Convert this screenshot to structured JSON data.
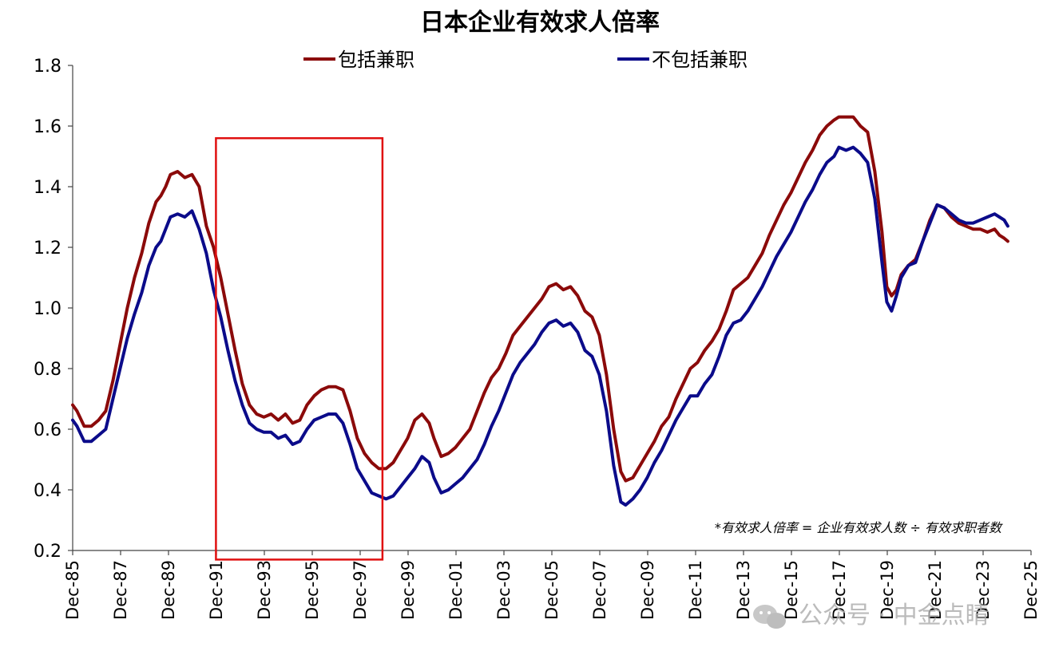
{
  "chart_data": {
    "type": "line",
    "title": "日本企业有效求人倍率",
    "xlabel": "",
    "ylabel": "",
    "ylim": [
      0.2,
      1.8
    ],
    "yticks": [
      "0.2",
      "0.4",
      "0.6",
      "0.8",
      "1.0",
      "1.2",
      "1.4",
      "1.6",
      "1.8"
    ],
    "xlim": [
      1985.92,
      2025.92
    ],
    "xticks": [
      "Dec-85",
      "Dec-87",
      "Dec-89",
      "Dec-91",
      "Dec-93",
      "Dec-95",
      "Dec-97",
      "Dec-99",
      "Dec-01",
      "Dec-03",
      "Dec-05",
      "Dec-07",
      "Dec-09",
      "Dec-11",
      "Dec-13",
      "Dec-15",
      "Dec-17",
      "Dec-19",
      "Dec-21",
      "Dec-23",
      "Dec-25"
    ],
    "legend_position": "top",
    "grid": false,
    "series": [
      {
        "name": "包括兼职",
        "color": "#8b0a0a",
        "x": [
          1985.92,
          1986.1,
          1986.4,
          1986.7,
          1987.0,
          1987.3,
          1987.6,
          1987.9,
          1988.2,
          1988.5,
          1988.8,
          1989.1,
          1989.4,
          1989.6,
          1989.8,
          1990.0,
          1990.3,
          1990.6,
          1990.9,
          1991.2,
          1991.5,
          1991.8,
          1992.1,
          1992.4,
          1992.7,
          1993.0,
          1993.3,
          1993.6,
          1993.9,
          1994.2,
          1994.5,
          1994.8,
          1995.1,
          1995.4,
          1995.7,
          1996.0,
          1996.3,
          1996.6,
          1996.9,
          1997.2,
          1997.5,
          1997.8,
          1998.1,
          1998.4,
          1998.7,
          1999.0,
          1999.3,
          1999.6,
          1999.9,
          2000.2,
          2000.5,
          2000.8,
          2001.0,
          2001.3,
          2001.6,
          2001.9,
          2002.2,
          2002.5,
          2002.8,
          2003.1,
          2003.4,
          2003.7,
          2004.0,
          2004.3,
          2004.6,
          2004.9,
          2005.2,
          2005.5,
          2005.8,
          2006.1,
          2006.4,
          2006.7,
          2007.0,
          2007.3,
          2007.6,
          2007.9,
          2008.2,
          2008.5,
          2008.8,
          2009.0,
          2009.3,
          2009.6,
          2009.9,
          2010.2,
          2010.5,
          2010.8,
          2011.1,
          2011.4,
          2011.7,
          2012.0,
          2012.3,
          2012.6,
          2012.9,
          2013.2,
          2013.5,
          2013.8,
          2014.1,
          2014.4,
          2014.7,
          2015.0,
          2015.3,
          2015.6,
          2015.9,
          2016.2,
          2016.5,
          2016.8,
          2017.1,
          2017.4,
          2017.7,
          2017.9,
          2018.2,
          2018.5,
          2018.8,
          2019.1,
          2019.4,
          2019.7,
          2019.9,
          2020.1,
          2020.3,
          2020.5,
          2020.8,
          2021.1,
          2021.4,
          2021.7,
          2022.0,
          2022.3,
          2022.6,
          2022.9,
          2023.2,
          2023.5,
          2023.8,
          2024.1,
          2024.4,
          2024.6,
          2024.8,
          2024.95
        ],
        "y": [
          0.68,
          0.66,
          0.61,
          0.61,
          0.63,
          0.66,
          0.76,
          0.88,
          1.0,
          1.1,
          1.18,
          1.28,
          1.35,
          1.37,
          1.4,
          1.44,
          1.45,
          1.43,
          1.44,
          1.4,
          1.27,
          1.2,
          1.1,
          0.98,
          0.86,
          0.75,
          0.68,
          0.65,
          0.64,
          0.65,
          0.63,
          0.65,
          0.62,
          0.63,
          0.68,
          0.71,
          0.73,
          0.74,
          0.74,
          0.73,
          0.66,
          0.57,
          0.52,
          0.49,
          0.47,
          0.47,
          0.49,
          0.53,
          0.57,
          0.63,
          0.65,
          0.62,
          0.57,
          0.51,
          0.52,
          0.54,
          0.57,
          0.6,
          0.66,
          0.72,
          0.77,
          0.8,
          0.85,
          0.91,
          0.94,
          0.97,
          1.0,
          1.03,
          1.07,
          1.08,
          1.06,
          1.07,
          1.04,
          0.99,
          0.97,
          0.91,
          0.78,
          0.6,
          0.46,
          0.43,
          0.44,
          0.48,
          0.52,
          0.56,
          0.61,
          0.64,
          0.7,
          0.75,
          0.8,
          0.82,
          0.86,
          0.89,
          0.93,
          0.99,
          1.06,
          1.08,
          1.1,
          1.14,
          1.18,
          1.24,
          1.29,
          1.34,
          1.38,
          1.43,
          1.48,
          1.52,
          1.57,
          1.6,
          1.62,
          1.63,
          1.63,
          1.63,
          1.6,
          1.58,
          1.45,
          1.25,
          1.07,
          1.04,
          1.06,
          1.11,
          1.14,
          1.16,
          1.22,
          1.29,
          1.34,
          1.33,
          1.3,
          1.28,
          1.27,
          1.26,
          1.26,
          1.25,
          1.26,
          1.24,
          1.23,
          1.22
        ]
      },
      {
        "name": "不包括兼职",
        "color": "#0b0b8a",
        "x": [
          1985.92,
          1986.1,
          1986.4,
          1986.7,
          1987.0,
          1987.3,
          1987.6,
          1987.9,
          1988.2,
          1988.5,
          1988.8,
          1989.1,
          1989.4,
          1989.6,
          1989.8,
          1990.0,
          1990.3,
          1990.6,
          1990.9,
          1991.2,
          1991.5,
          1991.8,
          1992.1,
          1992.4,
          1992.7,
          1993.0,
          1993.3,
          1993.6,
          1993.9,
          1994.2,
          1994.5,
          1994.8,
          1995.1,
          1995.4,
          1995.7,
          1996.0,
          1996.3,
          1996.6,
          1996.9,
          1997.2,
          1997.5,
          1997.8,
          1998.1,
          1998.4,
          1998.7,
          1999.0,
          1999.3,
          1999.6,
          1999.9,
          2000.2,
          2000.5,
          2000.8,
          2001.0,
          2001.3,
          2001.6,
          2001.9,
          2002.2,
          2002.5,
          2002.8,
          2003.1,
          2003.4,
          2003.7,
          2004.0,
          2004.3,
          2004.6,
          2004.9,
          2005.2,
          2005.5,
          2005.8,
          2006.1,
          2006.4,
          2006.7,
          2007.0,
          2007.3,
          2007.6,
          2007.9,
          2008.2,
          2008.5,
          2008.8,
          2009.0,
          2009.3,
          2009.6,
          2009.9,
          2010.2,
          2010.5,
          2010.8,
          2011.1,
          2011.4,
          2011.7,
          2012.0,
          2012.3,
          2012.6,
          2012.9,
          2013.2,
          2013.5,
          2013.8,
          2014.1,
          2014.4,
          2014.7,
          2015.0,
          2015.3,
          2015.6,
          2015.9,
          2016.2,
          2016.5,
          2016.8,
          2017.1,
          2017.4,
          2017.7,
          2017.9,
          2018.2,
          2018.5,
          2018.8,
          2019.1,
          2019.4,
          2019.7,
          2019.9,
          2020.1,
          2020.3,
          2020.5,
          2020.8,
          2021.1,
          2021.4,
          2021.7,
          2022.0,
          2022.3,
          2022.6,
          2022.9,
          2023.2,
          2023.5,
          2023.8,
          2024.1,
          2024.4,
          2024.6,
          2024.8,
          2024.95
        ],
        "y": [
          0.63,
          0.61,
          0.56,
          0.56,
          0.58,
          0.6,
          0.7,
          0.8,
          0.9,
          0.98,
          1.05,
          1.14,
          1.2,
          1.22,
          1.26,
          1.3,
          1.31,
          1.3,
          1.32,
          1.26,
          1.18,
          1.06,
          0.97,
          0.86,
          0.76,
          0.68,
          0.62,
          0.6,
          0.59,
          0.59,
          0.57,
          0.58,
          0.55,
          0.56,
          0.6,
          0.63,
          0.64,
          0.65,
          0.65,
          0.62,
          0.55,
          0.47,
          0.43,
          0.39,
          0.38,
          0.37,
          0.38,
          0.41,
          0.44,
          0.47,
          0.51,
          0.49,
          0.44,
          0.39,
          0.4,
          0.42,
          0.44,
          0.47,
          0.5,
          0.55,
          0.61,
          0.66,
          0.72,
          0.78,
          0.82,
          0.85,
          0.88,
          0.92,
          0.95,
          0.96,
          0.94,
          0.95,
          0.92,
          0.86,
          0.84,
          0.78,
          0.66,
          0.48,
          0.36,
          0.35,
          0.37,
          0.4,
          0.44,
          0.49,
          0.53,
          0.58,
          0.63,
          0.67,
          0.71,
          0.71,
          0.75,
          0.78,
          0.84,
          0.91,
          0.95,
          0.96,
          0.99,
          1.03,
          1.07,
          1.12,
          1.17,
          1.21,
          1.25,
          1.3,
          1.35,
          1.39,
          1.44,
          1.48,
          1.5,
          1.53,
          1.52,
          1.53,
          1.51,
          1.48,
          1.36,
          1.15,
          1.02,
          0.99,
          1.04,
          1.1,
          1.14,
          1.15,
          1.22,
          1.28,
          1.34,
          1.33,
          1.31,
          1.29,
          1.28,
          1.28,
          1.29,
          1.3,
          1.31,
          1.3,
          1.29,
          1.27
        ]
      }
    ],
    "annotations": [
      {
        "type": "rect",
        "x0": 1991.9,
        "x1": 1998.85,
        "y0": 0.17,
        "y1": 1.56,
        "color": "#e01010"
      }
    ],
    "note": "*有效求人倍率 = 企业有效求人数 ÷ 有效求职者数"
  },
  "watermark": {
    "text": "公众号 · 中金点睛",
    "icon": "wechat-icon"
  }
}
